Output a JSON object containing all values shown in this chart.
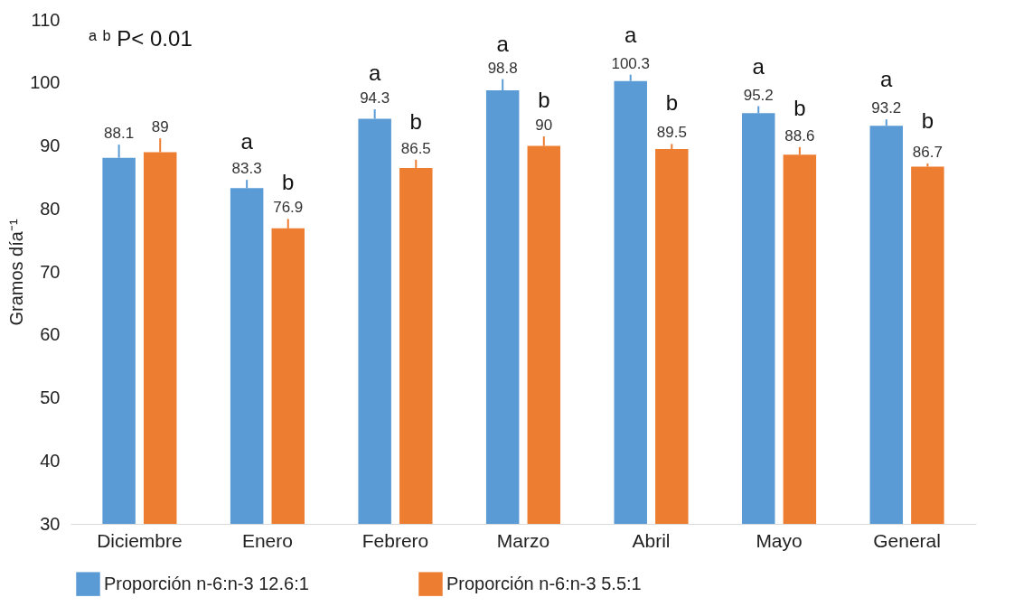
{
  "chart_data": {
    "type": "bar",
    "ylabel": "Gramos día⁻¹",
    "categories": [
      "Diciembre",
      "Enero",
      "Febrero",
      "Marzo",
      "Abril",
      "Mayo",
      "General"
    ],
    "series": [
      {
        "name": "Proporción n-6:n-3   12.6:1",
        "color": "#5b9bd5",
        "values": [
          88.1,
          83.3,
          94.3,
          98.8,
          100.3,
          95.2,
          93.2
        ],
        "errors": [
          [
            88.1,
            90.2
          ],
          [
            83.3,
            84.6
          ],
          [
            94.3,
            95.8
          ],
          [
            98.8,
            100.6
          ],
          [
            100.3,
            101.3
          ],
          [
            95.2,
            96.3
          ],
          [
            93.2,
            94.2
          ]
        ]
      },
      {
        "name": "Proporción n-6:n-3   5.5:1",
        "color": "#ed7d31",
        "values": [
          89,
          76.9,
          86.5,
          90,
          89.5,
          88.6,
          86.7
        ],
        "errors": [
          [
            89,
            91.2
          ],
          [
            76.9,
            78.4
          ],
          [
            86.5,
            87.8
          ],
          [
            90,
            91.5
          ],
          [
            89.5,
            90.3
          ],
          [
            88.6,
            89.8
          ],
          [
            86.7,
            87.2
          ]
        ]
      }
    ],
    "data_labels": true,
    "ylim": [
      30,
      110
    ],
    "yticks": [
      30,
      40,
      50,
      60,
      70,
      80,
      90,
      100,
      110
    ],
    "grid": false,
    "legend": "bottom",
    "annotations": [
      "ᵃ ᵇ P< 0.01",
      {
        "text": "a",
        "x": "Enero",
        "y": 83.3
      },
      {
        "text": "b",
        "x": "Enero",
        "y": 76.9
      },
      {
        "text": "a",
        "x": "Febrero",
        "y": 94.3
      },
      {
        "text": "b",
        "x": "Febrero",
        "y": 86.5
      },
      {
        "text": "a",
        "x": "Marzo",
        "y": 98.8
      },
      {
        "text": "b",
        "x": "Marzo",
        "y": 90
      },
      {
        "text": "a",
        "x": "Abril",
        "y": 100.3
      },
      {
        "text": "b",
        "x": "Abril",
        "y": 89.5
      },
      {
        "text": "a",
        "x": "Mayo",
        "y": 95.2
      },
      {
        "text": "b",
        "x": "Mayo",
        "y": 88.6
      },
      {
        "text": "a",
        "x": "General",
        "y": 93.2
      },
      {
        "text": "b",
        "x": "General",
        "y": 86.7
      }
    ]
  }
}
